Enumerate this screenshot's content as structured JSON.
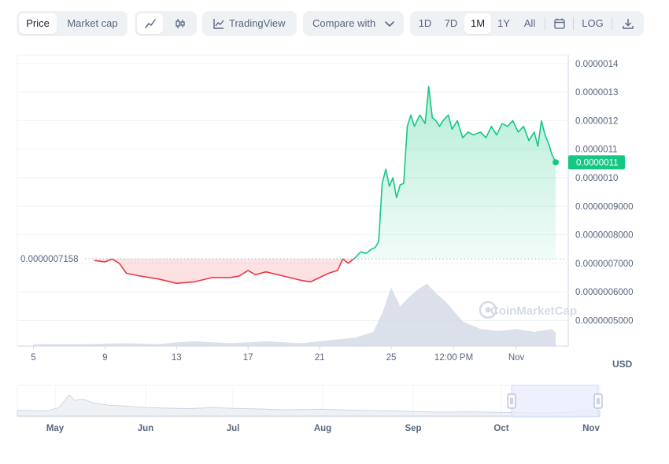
{
  "toolbar": {
    "price_label": "Price",
    "market_cap_label": "Market cap",
    "tradingview_label": "TradingView",
    "compare_label": "Compare with",
    "ranges": [
      "1D",
      "7D",
      "1M",
      "1Y",
      "All"
    ],
    "active_range": "1M",
    "log_label": "LOG",
    "icons": [
      "line-chart-icon",
      "candlestick-icon",
      "tradingview-icon",
      "chevron-down-icon",
      "calendar-icon",
      "download-icon"
    ]
  },
  "watermark": "CoinMarketCap",
  "currency_label": "USD",
  "colors": {
    "up": "#16c784",
    "down": "#ea3943",
    "volume": "#cfd6e4",
    "nav_selection": "#e8edfd"
  },
  "chart_data": {
    "type": "area",
    "y_ticks": [
      "0.0000005000",
      "0.0000006000",
      "0.0000007000",
      "0.0000008000",
      "0.0000009000",
      "0.0000010",
      "0.0000011",
      "0.0000012",
      "0.0000013",
      "0.0000014"
    ],
    "x_ticks": [
      "5",
      "9",
      "13",
      "17",
      "21",
      "25",
      "12:00 PM",
      "Nov"
    ],
    "ylim": [
      4.1e-07,
      1.43e-06
    ],
    "baseline": {
      "value": 7.158e-07,
      "label": "0.0000007158"
    },
    "current_price": {
      "value": 1.0542e-06,
      "label": "0.0000011"
    },
    "price_series": {
      "x": [
        8.4,
        9.0,
        9.4,
        9.8,
        10.2,
        11.0,
        12.0,
        13.0,
        14.0,
        15.0,
        16.0,
        16.5,
        17.0,
        17.4,
        18.0,
        19.0,
        20.0,
        20.5,
        21.0,
        21.5,
        22.0,
        22.3,
        22.6,
        23.0,
        23.3,
        23.6,
        23.9,
        24.1,
        24.3,
        24.5,
        24.7,
        24.9,
        25.1,
        25.3,
        25.5,
        25.7,
        25.9,
        26.1,
        26.3,
        26.6,
        26.9,
        27.1,
        27.3,
        27.5,
        27.7,
        27.9,
        28.2,
        28.4,
        28.7,
        29.0,
        29.3,
        29.6,
        30.0,
        30.3,
        30.6,
        30.9,
        31.2,
        31.5,
        31.8,
        32.1,
        32.4,
        32.7,
        33.0,
        33.2,
        33.4,
        33.6,
        33.8,
        34.0,
        34.2
      ],
      "y": [
        7.1e-07,
        7.05e-07,
        7.15e-07,
        7e-07,
        6.65e-07,
        6.55e-07,
        6.45e-07,
        6.3e-07,
        6.35e-07,
        6.5e-07,
        6.5e-07,
        6.55e-07,
        6.75e-07,
        6.6e-07,
        6.7e-07,
        6.55e-07,
        6.4e-07,
        6.35e-07,
        6.5e-07,
        6.65e-07,
        6.75e-07,
        7.15e-07,
        7e-07,
        7.2e-07,
        7.4e-07,
        7.35e-07,
        7.5e-07,
        7.55e-07,
        7.75e-07,
        9.8e-07,
        1.03e-06,
        9.7e-07,
        1e-06,
        9.3e-07,
        9.75e-07,
        9.8e-07,
        1.18e-06,
        1.22e-06,
        1.18e-06,
        1.22e-06,
        1.19e-06,
        1.32e-06,
        1.21e-06,
        1.2e-06,
        1.18e-06,
        1.2e-06,
        1.22e-06,
        1.17e-06,
        1.2e-06,
        1.14e-06,
        1.16e-06,
        1.15e-06,
        1.16e-06,
        1.14e-06,
        1.18e-06,
        1.15e-06,
        1.19e-06,
        1.18e-06,
        1.2e-06,
        1.16e-06,
        1.18e-06,
        1.13e-06,
        1.16e-06,
        1.11e-06,
        1.2e-06,
        1.15e-06,
        1.12e-06,
        1.08e-06,
        1.0542e-06
      ]
    },
    "volume_series": {
      "x": [
        5,
        8,
        10,
        12,
        13,
        14,
        15,
        16,
        17,
        18,
        19,
        20,
        21,
        22,
        23,
        24,
        24.5,
        25,
        25.5,
        26,
        26.5,
        27,
        27.5,
        28,
        29,
        30,
        31,
        32,
        33,
        34,
        34.2
      ],
      "y": [
        0.02,
        0.02,
        0.03,
        0.02,
        0.04,
        0.05,
        0.04,
        0.03,
        0.04,
        0.05,
        0.04,
        0.03,
        0.05,
        0.07,
        0.09,
        0.15,
        0.35,
        0.62,
        0.42,
        0.52,
        0.6,
        0.66,
        0.56,
        0.48,
        0.26,
        0.18,
        0.16,
        0.18,
        0.15,
        0.18,
        0.14
      ]
    },
    "navigator": {
      "x_ticks": [
        "May",
        "Jun",
        "Jul",
        "Aug",
        "Sep",
        "Oct",
        "Nov"
      ],
      "selected_range": [
        "Oct 5",
        "Nov 5"
      ]
    }
  }
}
